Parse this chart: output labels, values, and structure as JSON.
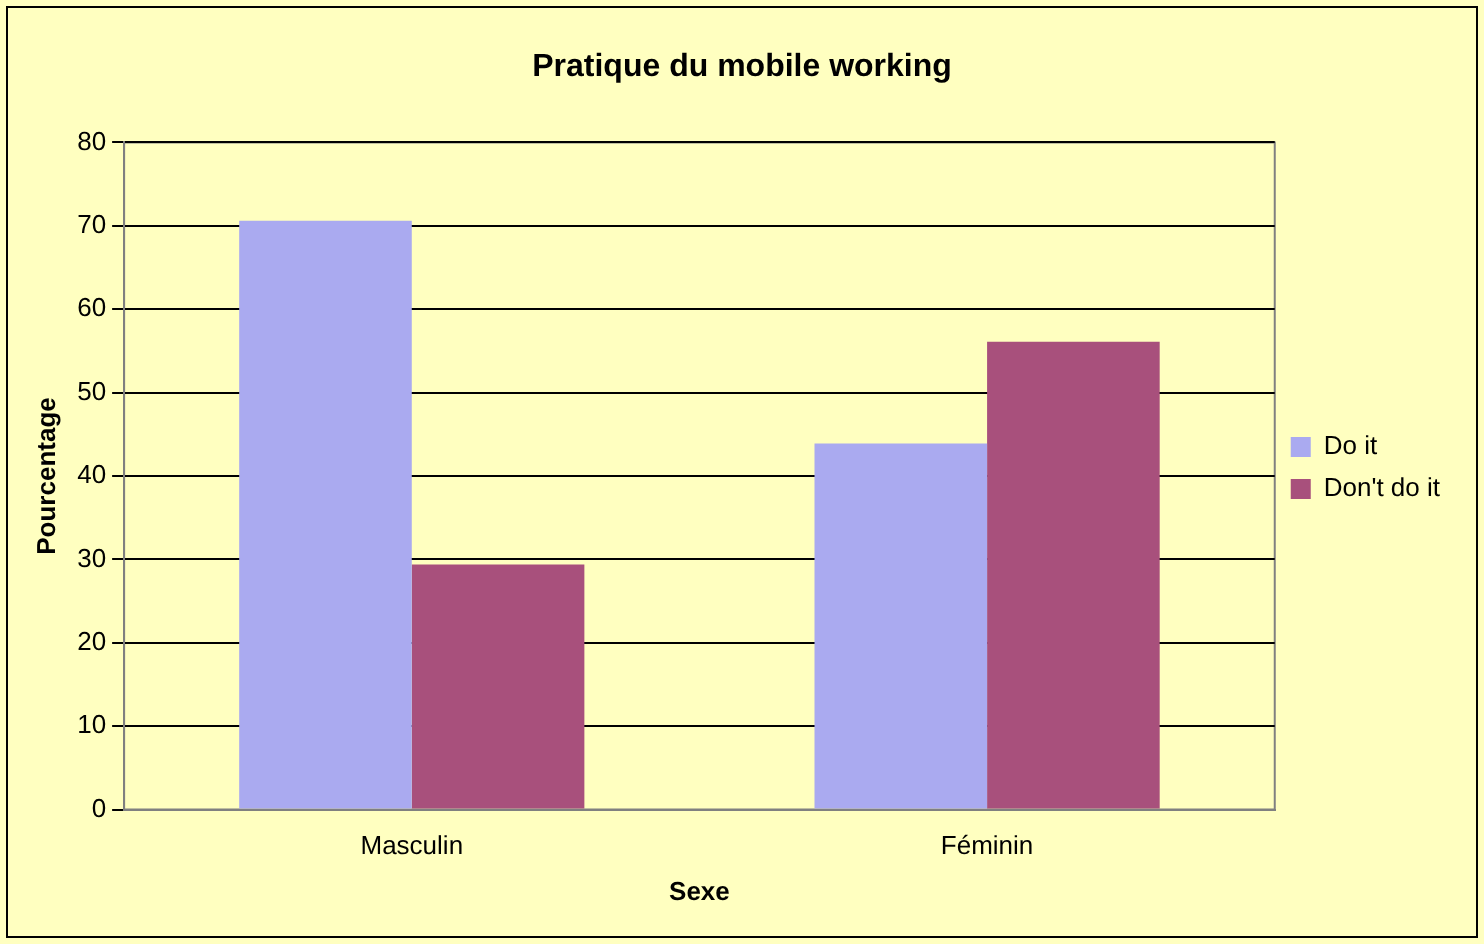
{
  "chart_data": {
    "type": "bar",
    "title": "Pratique du mobile working",
    "xlabel": "Sexe",
    "ylabel": "Pourcentage",
    "categories": [
      "Masculin",
      "Féminin"
    ],
    "series": [
      {
        "name": "Do it",
        "color": "#aaaaf0",
        "values": [
          70.6,
          43.9
        ]
      },
      {
        "name": "Don't do it",
        "color": "#a8507c",
        "values": [
          29.4,
          56.1
        ]
      }
    ],
    "ylim": [
      0,
      80
    ],
    "yticks": [
      0,
      10,
      20,
      30,
      40,
      50,
      60,
      70,
      80
    ],
    "grid": "y",
    "legend": "right"
  }
}
